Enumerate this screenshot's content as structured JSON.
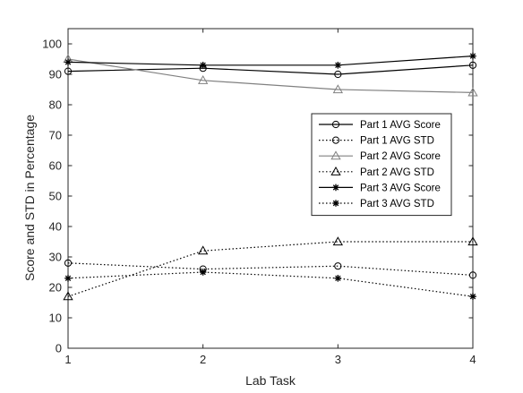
{
  "chart_data": {
    "type": "line",
    "title": "",
    "xlabel": "Lab Task",
    "ylabel": "Score and STD in Percentage",
    "x": [
      1,
      2,
      3,
      4
    ],
    "xlim": [
      1,
      4
    ],
    "ylim": [
      0,
      105
    ],
    "xticks": [
      "1",
      "2",
      "3",
      "4"
    ],
    "yticks": [
      "0",
      "10",
      "20",
      "30",
      "40",
      "50",
      "60",
      "70",
      "80",
      "90",
      "100"
    ],
    "grid": false,
    "legend_position": "right",
    "series": [
      {
        "name": "Part 1 AVG Score",
        "values": [
          91,
          92,
          90,
          93
        ],
        "color": "#000000",
        "line_style": "solid",
        "marker": "circle"
      },
      {
        "name": "Part 1 AVG STD",
        "values": [
          28,
          26,
          27,
          24
        ],
        "color": "#000000",
        "line_style": "dotted",
        "marker": "circle"
      },
      {
        "name": "Part 2 AVG Score",
        "values": [
          95,
          88,
          85,
          84
        ],
        "color": "#808080",
        "line_style": "solid",
        "marker": "triangle"
      },
      {
        "name": "Part 2 AVG STD",
        "values": [
          17,
          32,
          35,
          35
        ],
        "color": "#000000",
        "line_style": "dotted",
        "marker": "triangle"
      },
      {
        "name": "Part 3 AVG Score",
        "values": [
          94,
          93,
          93,
          96
        ],
        "color": "#000000",
        "line_style": "solid",
        "marker": "asterisk"
      },
      {
        "name": "Part 3 AVG STD",
        "values": [
          23,
          25,
          23,
          17
        ],
        "color": "#000000",
        "line_style": "dotted",
        "marker": "asterisk"
      }
    ]
  }
}
